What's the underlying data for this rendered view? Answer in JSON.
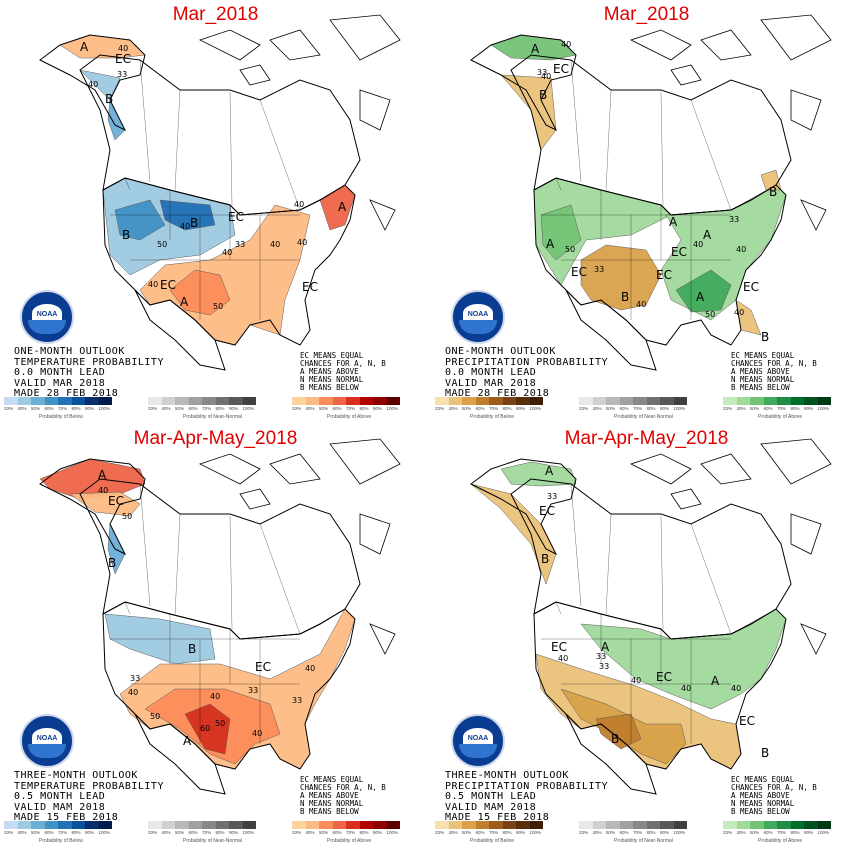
{
  "panels": [
    {
      "title": "Mar_2018",
      "kind": "temperature",
      "text_lines": [
        "ONE-MONTH OUTLOOK",
        "TEMPERATURE PROBABILITY",
        "0.0 MONTH LEAD",
        "VALID MAR 2018",
        "MADE 28 FEB 2018"
      ],
      "map_labels": [
        "EC",
        "EC",
        "EC",
        "EC",
        "B",
        "B",
        "B",
        "A",
        "A",
        "A"
      ],
      "contour_labels": [
        "40",
        "33",
        "40",
        "50",
        "40",
        "40",
        "33",
        "40",
        "40",
        "40",
        "50",
        "40"
      ]
    },
    {
      "title": "Mar_2018",
      "kind": "precipitation",
      "text_lines": [
        "ONE-MONTH OUTLOOK",
        "PRECIPITATION PROBABILITY",
        "0.0 MONTH LEAD",
        "VALID MAR 2018",
        "MADE 28 FEB 2018"
      ],
      "map_labels": [
        "EC",
        "EC",
        "EC",
        "EC",
        "EC",
        "A",
        "A",
        "A",
        "A",
        "A",
        "B",
        "B",
        "B",
        "B"
      ],
      "contour_labels": [
        "40",
        "33",
        "40",
        "50",
        "33",
        "40",
        "40",
        "40",
        "33",
        "40",
        "50"
      ]
    },
    {
      "title": "Mar-Apr-May_2018",
      "kind": "temperature",
      "text_lines": [
        "THREE-MONTH OUTLOOK",
        "TEMPERATURE PROBABILITY",
        "0.5 MONTH LEAD",
        "VALID MAM 2018",
        "MADE 15 FEB 2018"
      ],
      "map_labels": [
        "EC",
        "EC",
        "A",
        "A",
        "B",
        "B"
      ],
      "contour_labels": [
        "40",
        "50",
        "33",
        "40",
        "33",
        "40",
        "50",
        "60",
        "50",
        "40",
        "33",
        "40"
      ]
    },
    {
      "title": "Mar-Apr-May_2018",
      "kind": "precipitation",
      "text_lines": [
        "THREE-MONTH OUTLOOK",
        "PRECIPITATION PROBABILITY",
        "0.5 MONTH LEAD",
        "VALID MAM 2018",
        "MADE 15 FEB 2018"
      ],
      "map_labels": [
        "EC",
        "EC",
        "EC",
        "EC",
        "A",
        "A",
        "A",
        "B",
        "B",
        "B"
      ],
      "contour_labels": [
        "33",
        "40",
        "33",
        "40",
        "33",
        "40",
        "40"
      ]
    }
  ],
  "ec_legend": [
    "EC MEANS EQUAL",
    "CHANCES FOR A, N, B",
    "A MEANS ABOVE",
    "N MEANS NORMAL",
    "B MEANS BELOW"
  ],
  "logo_text": "NOAA",
  "colorbars": {
    "temperature": {
      "below": {
        "caption": "Probability of Below",
        "colors": [
          "#c6dbef",
          "#9ecae1",
          "#6baed6",
          "#4292c6",
          "#2171b5",
          "#08519c",
          "#08306b",
          "#041a4a"
        ]
      },
      "normal": {
        "caption": "Probability of Near-Normal",
        "colors": [
          "#e8e8e8",
          "#d0d0d0",
          "#b8b8b8",
          "#a0a0a0",
          "#888888",
          "#707070",
          "#585858",
          "#404040"
        ]
      },
      "above": {
        "caption": "Probability of Above",
        "colors": [
          "#fdd49e",
          "#fdbb84",
          "#fc8d59",
          "#ef6548",
          "#d7301f",
          "#b30000",
          "#8c0000",
          "#5a0000"
        ]
      }
    },
    "precipitation": {
      "below": {
        "caption": "Probability of Below",
        "colors": [
          "#f6e0b0",
          "#eac27a",
          "#d9a24a",
          "#c07e2e",
          "#9c5c1c",
          "#7a4212",
          "#5a2e0a",
          "#3e1e06"
        ]
      },
      "normal": {
        "caption": "Probability of Near-Normal",
        "colors": [
          "#e8e8e8",
          "#d0d0d0",
          "#b8b8b8",
          "#a0a0a0",
          "#888888",
          "#707070",
          "#585858",
          "#404040"
        ]
      },
      "above": {
        "caption": "Probability of Above",
        "colors": [
          "#c7e9c0",
          "#a1d99b",
          "#74c476",
          "#41ab5d",
          "#238b45",
          "#006d2c",
          "#00531f",
          "#003a15"
        ]
      }
    },
    "tick_labels": [
      "33%",
      "40%",
      "50%",
      "60%",
      "70%",
      "80%",
      "90%",
      "100%"
    ]
  }
}
